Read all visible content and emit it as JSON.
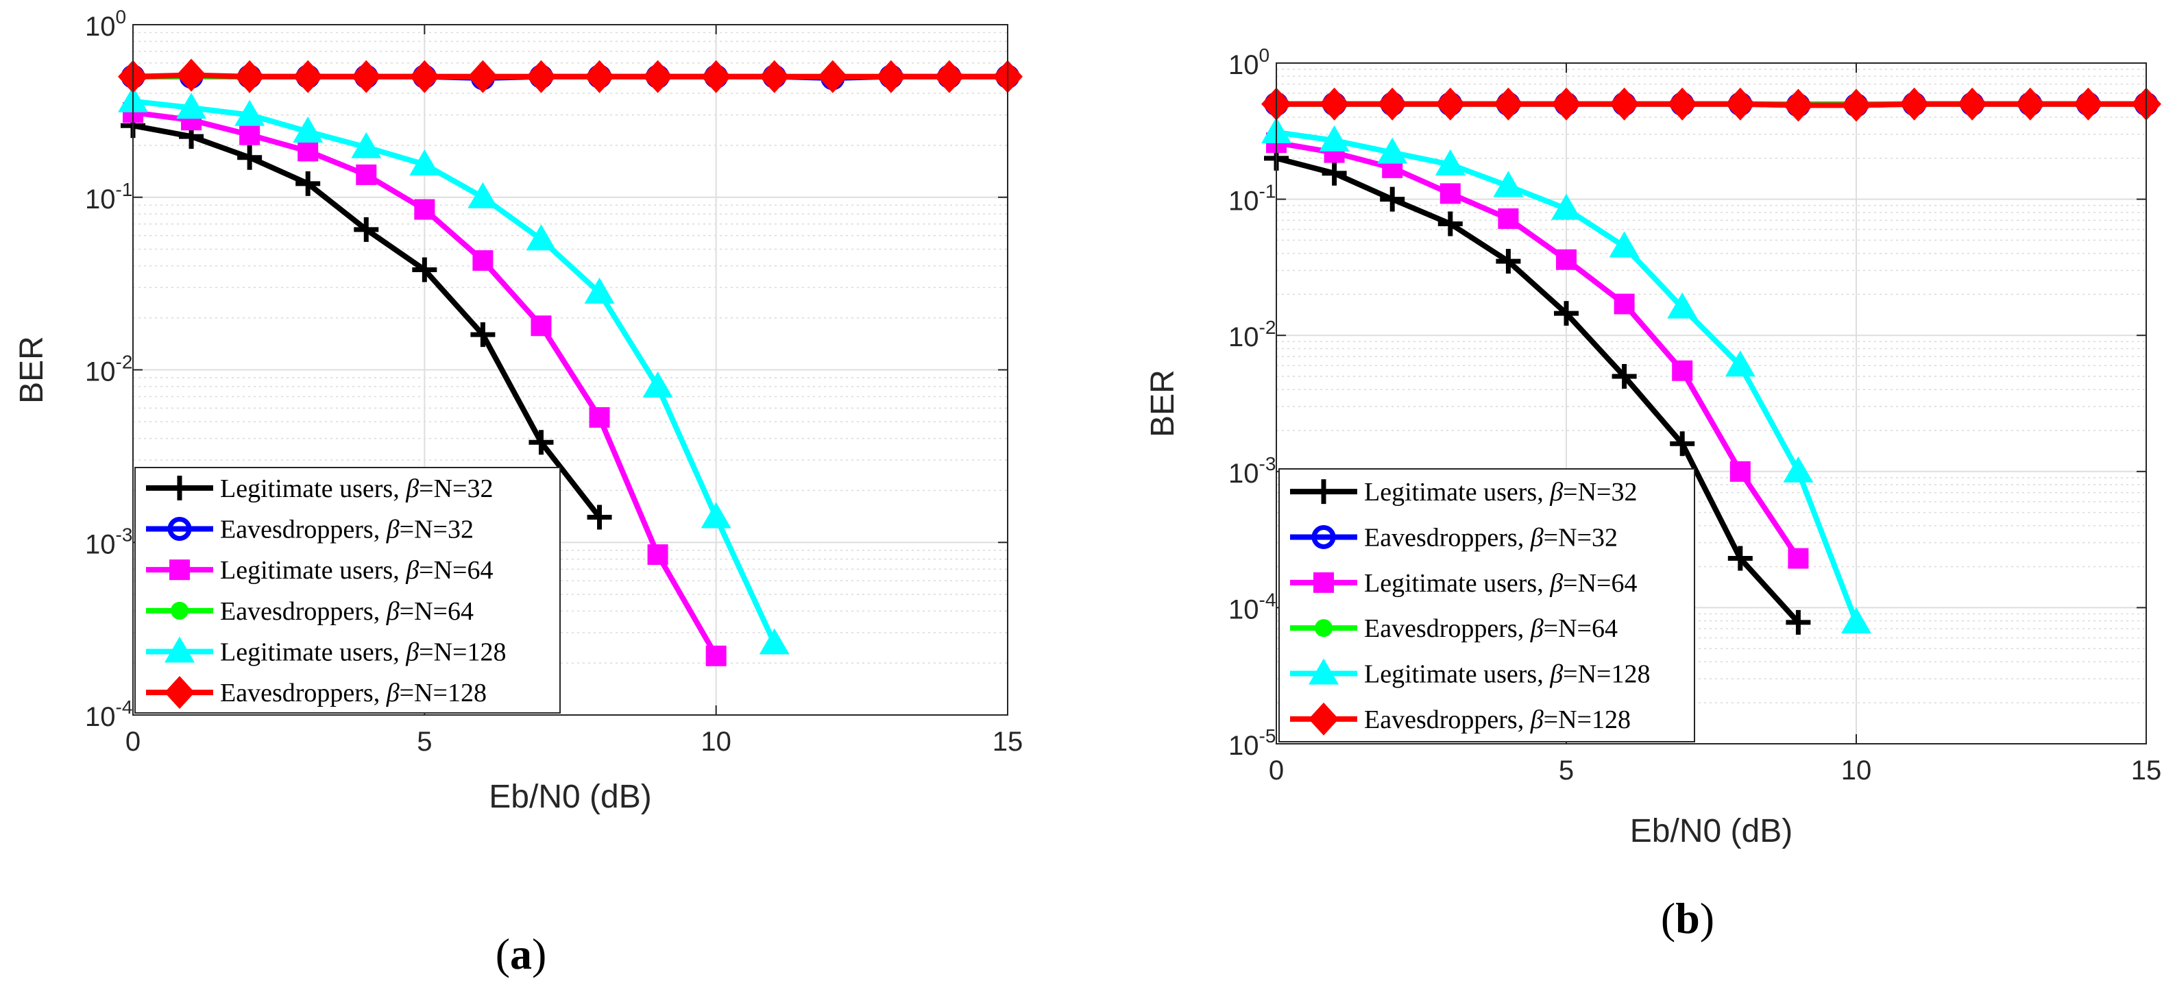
{
  "chart_data": [
    {
      "type": "line",
      "panel_label": "(a)",
      "panel_letter": "a",
      "xlabel": "Eb/N0 (dB)",
      "ylabel": "BER",
      "xlim": [
        0,
        15
      ],
      "ylim": [
        0.0001,
        1
      ],
      "yscale": "log",
      "xticks": [
        0,
        5,
        10,
        15
      ],
      "ytick_exponents": [
        0,
        -1,
        -2,
        -3,
        -4
      ],
      "grid": true,
      "legend_position": "bottom-left",
      "series": [
        {
          "label_pre": "Legitimate users, ",
          "label_post": "=N=32",
          "color": "#000000",
          "marker": "plus",
          "x": [
            0,
            1,
            2,
            3,
            4,
            5,
            6,
            7,
            8
          ],
          "y": [
            0.26,
            0.225,
            0.17,
            0.12,
            0.065,
            0.038,
            0.016,
            0.0038,
            0.0014
          ]
        },
        {
          "label_pre": "Eavesdroppers, ",
          "label_post": "=N=32",
          "color": "#0000ff",
          "marker": "circle",
          "x": [
            0,
            1,
            2,
            3,
            4,
            5,
            6,
            7,
            8,
            9,
            10,
            11,
            12,
            13,
            14,
            15
          ],
          "y": [
            0.5,
            0.5,
            0.5,
            0.5,
            0.5,
            0.5,
            0.49,
            0.5,
            0.5,
            0.5,
            0.5,
            0.5,
            0.49,
            0.5,
            0.5,
            0.5
          ]
        },
        {
          "label_pre": "Legitimate users, ",
          "label_post": "=N=64",
          "color": "#ff00ff",
          "marker": "square",
          "x": [
            0,
            1,
            2,
            3,
            4,
            5,
            6,
            7,
            8,
            9,
            10
          ],
          "y": [
            0.31,
            0.28,
            0.23,
            0.185,
            0.135,
            0.085,
            0.043,
            0.018,
            0.0053,
            0.00085,
            0.00022
          ]
        },
        {
          "label_pre": "Eavesdroppers, ",
          "label_post": "=N=64",
          "color": "#00ff00",
          "marker": "dot",
          "x": [
            0,
            1,
            2,
            3,
            4,
            5,
            6,
            7,
            8,
            9,
            10,
            11,
            12,
            13,
            14,
            15
          ],
          "y": [
            0.5,
            0.5,
            0.5,
            0.5,
            0.5,
            0.5,
            0.5,
            0.5,
            0.5,
            0.5,
            0.5,
            0.5,
            0.5,
            0.5,
            0.5,
            0.5
          ]
        },
        {
          "label_pre": "Legitimate users, ",
          "label_post": "=N=128",
          "color": "#00ffff",
          "marker": "triangle",
          "x": [
            0,
            1,
            2,
            3,
            4,
            5,
            6,
            7,
            8,
            9,
            10,
            11
          ],
          "y": [
            0.36,
            0.33,
            0.3,
            0.24,
            0.195,
            0.155,
            0.1,
            0.057,
            0.028,
            0.008,
            0.0014,
            0.00026
          ]
        },
        {
          "label_pre": "Eavesdroppers, ",
          "label_post": "=N=128",
          "color": "#ff0000",
          "marker": "diamond",
          "x": [
            0,
            1,
            2,
            3,
            4,
            5,
            6,
            7,
            8,
            9,
            10,
            11,
            12,
            13,
            14,
            15
          ],
          "y": [
            0.5,
            0.51,
            0.5,
            0.5,
            0.5,
            0.5,
            0.5,
            0.5,
            0.5,
            0.5,
            0.5,
            0.5,
            0.5,
            0.5,
            0.5,
            0.5
          ]
        }
      ]
    },
    {
      "type": "line",
      "panel_label": "(b)",
      "panel_letter": "b",
      "xlabel": "Eb/N0 (dB)",
      "ylabel": "BER",
      "xlim": [
        0,
        15
      ],
      "ylim": [
        1e-05,
        1
      ],
      "yscale": "log",
      "xticks": [
        0,
        5,
        10,
        15
      ],
      "ytick_exponents": [
        0,
        -1,
        -2,
        -3,
        -4,
        -5
      ],
      "grid": true,
      "legend_position": "bottom-left",
      "series": [
        {
          "label_pre": "Legitimate users, ",
          "label_post": "=N=32",
          "color": "#000000",
          "marker": "plus",
          "x": [
            0,
            1,
            2,
            3,
            4,
            5,
            6,
            7,
            8,
            9
          ],
          "y": [
            0.2,
            0.155,
            0.1,
            0.066,
            0.035,
            0.0145,
            0.005,
            0.0016,
            0.00023,
            7.8e-05
          ]
        },
        {
          "label_pre": "Eavesdroppers, ",
          "label_post": "=N=32",
          "color": "#0000ff",
          "marker": "circle",
          "x": [
            0,
            1,
            2,
            3,
            4,
            5,
            6,
            7,
            8,
            9,
            10,
            11,
            12,
            13,
            14,
            15
          ],
          "y": [
            0.5,
            0.5,
            0.5,
            0.5,
            0.5,
            0.5,
            0.5,
            0.5,
            0.5,
            0.49,
            0.49,
            0.5,
            0.5,
            0.5,
            0.5,
            0.5
          ]
        },
        {
          "label_pre": "Legitimate users, ",
          "label_post": "=N=64",
          "color": "#ff00ff",
          "marker": "square",
          "x": [
            0,
            1,
            2,
            3,
            4,
            5,
            6,
            7,
            8,
            9
          ],
          "y": [
            0.26,
            0.22,
            0.17,
            0.11,
            0.072,
            0.036,
            0.017,
            0.0055,
            0.001,
            0.00023
          ]
        },
        {
          "label_pre": "Eavesdroppers, ",
          "label_post": "=N=64",
          "color": "#00ff00",
          "marker": "dot",
          "x": [
            0,
            1,
            2,
            3,
            4,
            5,
            6,
            7,
            8,
            9,
            10,
            11,
            12,
            13,
            14,
            15
          ],
          "y": [
            0.5,
            0.5,
            0.5,
            0.5,
            0.5,
            0.5,
            0.5,
            0.5,
            0.5,
            0.5,
            0.5,
            0.5,
            0.5,
            0.5,
            0.5,
            0.5
          ]
        },
        {
          "label_pre": "Legitimate users, ",
          "label_post": "=N=128",
          "color": "#00ffff",
          "marker": "triangle",
          "x": [
            0,
            1,
            2,
            3,
            4,
            5,
            6,
            7,
            8,
            9,
            10
          ],
          "y": [
            0.31,
            0.27,
            0.22,
            0.18,
            0.125,
            0.085,
            0.045,
            0.016,
            0.006,
            0.001,
            7.8e-05
          ]
        },
        {
          "label_pre": "Eavesdroppers, ",
          "label_post": "=N=128",
          "color": "#ff0000",
          "marker": "diamond",
          "x": [
            0,
            1,
            2,
            3,
            4,
            5,
            6,
            7,
            8,
            9,
            10,
            11,
            12,
            13,
            14,
            15
          ],
          "y": [
            0.5,
            0.5,
            0.5,
            0.5,
            0.5,
            0.5,
            0.5,
            0.5,
            0.5,
            0.49,
            0.49,
            0.5,
            0.5,
            0.5,
            0.5,
            0.5
          ]
        }
      ]
    }
  ],
  "legend_symbol": "β",
  "tick_base": "10"
}
